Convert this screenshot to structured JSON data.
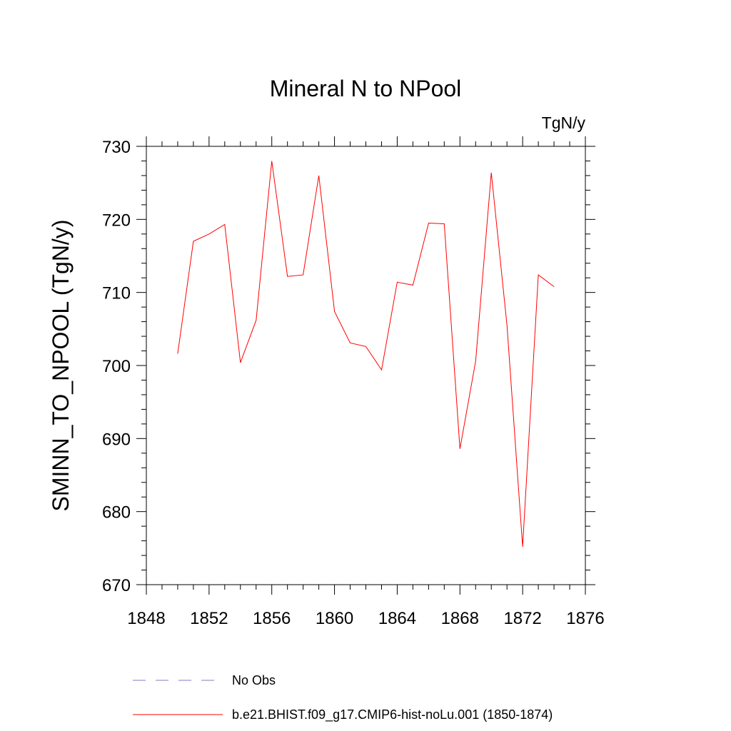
{
  "chart_data": {
    "type": "line",
    "title": "Mineral N to NPool",
    "units_label": "TgN/y",
    "ylabel": "SMINN_TO_NPOOL  (TgN/y)",
    "xlabel": "",
    "xlim": [
      1848,
      1876
    ],
    "ylim": [
      670,
      730
    ],
    "x_ticks": [
      "1848",
      "1852",
      "1856",
      "1860",
      "1864",
      "1868",
      "1872",
      "1876"
    ],
    "y_ticks": [
      "670",
      "680",
      "690",
      "700",
      "710",
      "720",
      "730"
    ],
    "x_minor_step": 1,
    "y_minor_step": 2,
    "grid": false,
    "legend_placement": "bottom",
    "series": [
      {
        "name": "b.e21.BHIST.f09_g17.CMIP6-hist-noLu.001 (1850-1874)",
        "color": "#ff0000",
        "style": "solid",
        "x": [
          1850,
          1851,
          1852,
          1853,
          1854,
          1855,
          1856,
          1857,
          1858,
          1859,
          1860,
          1861,
          1862,
          1863,
          1864,
          1865,
          1866,
          1867,
          1868,
          1869,
          1870,
          1871,
          1872,
          1873,
          1874
        ],
        "y": [
          701.6,
          717.0,
          718.0,
          719.3,
          700.4,
          706.2,
          728.0,
          712.2,
          712.4,
          726.0,
          707.4,
          703.1,
          702.6,
          699.4,
          711.4,
          711.0,
          719.5,
          719.4,
          688.6,
          700.6,
          726.4,
          705.5,
          675.2,
          712.4,
          710.8
        ]
      },
      {
        "name": "No Obs",
        "color": "#7b7bc9",
        "style": "dashed",
        "x": [],
        "y": []
      }
    ]
  }
}
